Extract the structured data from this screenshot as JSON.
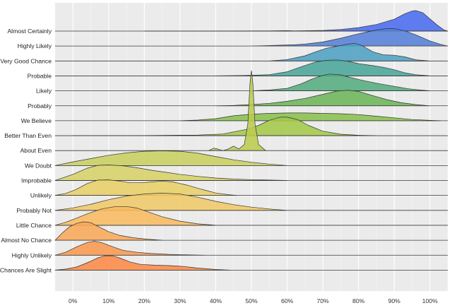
{
  "chart_data": {
    "type": "area",
    "subtype": "ridgeline",
    "title": "",
    "xlabel": "",
    "ylabel": "",
    "xlim": [
      -5,
      105
    ],
    "xticks": [
      0,
      10,
      20,
      30,
      40,
      50,
      60,
      70,
      80,
      90,
      100
    ],
    "xtick_labels": [
      "0%",
      "10%",
      "20%",
      "30%",
      "40%",
      "50%",
      "60%",
      "70%",
      "80%",
      "90%",
      "100%"
    ],
    "grid": true,
    "legend": "none",
    "series": [
      {
        "name": "Almost Certainly",
        "color": "#4a6cf0",
        "points": [
          [
            20,
            0
          ],
          [
            55,
            0.01
          ],
          [
            60,
            0.02
          ],
          [
            62,
            0.01
          ],
          [
            70,
            0.03
          ],
          [
            75,
            0.08
          ],
          [
            80,
            0.17
          ],
          [
            85,
            0.32
          ],
          [
            90,
            0.58
          ],
          [
            93,
            0.85
          ],
          [
            95,
            0.98
          ],
          [
            96,
            1.0
          ],
          [
            98,
            0.9
          ],
          [
            100,
            0.6
          ],
          [
            102,
            0.3
          ],
          [
            104,
            0.05
          ],
          [
            105,
            0
          ]
        ]
      },
      {
        "name": "Highly Likely",
        "color": "#5580d8",
        "points": [
          [
            50,
            0
          ],
          [
            58,
            0.04
          ],
          [
            62,
            0.06
          ],
          [
            65,
            0.1
          ],
          [
            70,
            0.2
          ],
          [
            75,
            0.38
          ],
          [
            80,
            0.6
          ],
          [
            85,
            0.78
          ],
          [
            88,
            0.85
          ],
          [
            90,
            0.85
          ],
          [
            93,
            0.74
          ],
          [
            96,
            0.55
          ],
          [
            100,
            0.25
          ],
          [
            103,
            0.08
          ],
          [
            105,
            0
          ]
        ]
      },
      {
        "name": "Very Good Chance",
        "color": "#4ea0c2",
        "points": [
          [
            55,
            0
          ],
          [
            60,
            0.07
          ],
          [
            65,
            0.25
          ],
          [
            68,
            0.45
          ],
          [
            71,
            0.62
          ],
          [
            74,
            0.72
          ],
          [
            77,
            0.82
          ],
          [
            79,
            0.86
          ],
          [
            81,
            0.75
          ],
          [
            84,
            0.45
          ],
          [
            87,
            0.3
          ],
          [
            90,
            0.28
          ],
          [
            93,
            0.2
          ],
          [
            96,
            0.06
          ],
          [
            100,
            0
          ]
        ]
      },
      {
        "name": "Probable",
        "color": "#4aa59a",
        "points": [
          [
            40,
            0
          ],
          [
            48,
            0.02
          ],
          [
            55,
            0.06
          ],
          [
            60,
            0.2
          ],
          [
            64,
            0.45
          ],
          [
            68,
            0.68
          ],
          [
            71,
            0.76
          ],
          [
            74,
            0.78
          ],
          [
            77,
            0.72
          ],
          [
            80,
            0.6
          ],
          [
            84,
            0.5
          ],
          [
            87,
            0.42
          ],
          [
            90,
            0.3
          ],
          [
            93,
            0.15
          ],
          [
            96,
            0.06
          ],
          [
            100,
            0
          ]
        ]
      },
      {
        "name": "Likely",
        "color": "#54ac80",
        "points": [
          [
            50,
            0
          ],
          [
            55,
            0.04
          ],
          [
            60,
            0.12
          ],
          [
            64,
            0.35
          ],
          [
            67,
            0.58
          ],
          [
            70,
            0.76
          ],
          [
            72,
            0.82
          ],
          [
            75,
            0.78
          ],
          [
            78,
            0.64
          ],
          [
            82,
            0.48
          ],
          [
            86,
            0.34
          ],
          [
            90,
            0.22
          ],
          [
            94,
            0.1
          ],
          [
            98,
            0.03
          ],
          [
            100,
            0
          ]
        ]
      },
      {
        "name": "Probably",
        "color": "#6cb558",
        "points": [
          [
            40,
            0
          ],
          [
            45,
            0.02
          ],
          [
            50,
            0.06
          ],
          [
            55,
            0.12
          ],
          [
            60,
            0.22
          ],
          [
            65,
            0.36
          ],
          [
            70,
            0.56
          ],
          [
            74,
            0.72
          ],
          [
            77,
            0.76
          ],
          [
            80,
            0.7
          ],
          [
            84,
            0.5
          ],
          [
            88,
            0.3
          ],
          [
            92,
            0.15
          ],
          [
            96,
            0.06
          ],
          [
            100,
            0
          ]
        ]
      },
      {
        "name": "We Believe",
        "color": "#8ac04f",
        "points": [
          [
            30,
            0
          ],
          [
            35,
            0.03
          ],
          [
            40,
            0.1
          ],
          [
            45,
            0.24
          ],
          [
            50,
            0.32
          ],
          [
            55,
            0.36
          ],
          [
            60,
            0.38
          ],
          [
            65,
            0.38
          ],
          [
            70,
            0.36
          ],
          [
            75,
            0.34
          ],
          [
            80,
            0.3
          ],
          [
            85,
            0.22
          ],
          [
            90,
            0.14
          ],
          [
            95,
            0.06
          ],
          [
            100,
            0.02
          ],
          [
            103,
            0
          ]
        ]
      },
      {
        "name": "Better Than Even",
        "color": "#a4c84a",
        "points": [
          [
            0,
            0
          ],
          [
            20,
            0.01
          ],
          [
            35,
            0.03
          ],
          [
            42,
            0.08
          ],
          [
            46,
            0.22
          ],
          [
            49,
            0.32
          ],
          [
            52,
            0.5
          ],
          [
            55,
            0.75
          ],
          [
            58,
            0.9
          ],
          [
            60,
            0.9
          ],
          [
            63,
            0.78
          ],
          [
            66,
            0.5
          ],
          [
            70,
            0.22
          ],
          [
            75,
            0.07
          ],
          [
            80,
            0.02
          ],
          [
            85,
            0
          ]
        ]
      },
      {
        "name": "About Even",
        "color": "#bccb50",
        "points": [
          [
            38,
            0
          ],
          [
            39.5,
            0.12
          ],
          [
            40.5,
            0.08
          ],
          [
            42,
            0
          ],
          [
            43.5,
            0.08
          ],
          [
            45,
            0.22
          ],
          [
            46.5,
            0.08
          ],
          [
            48,
            0.3
          ],
          [
            49,
            1.3
          ],
          [
            49.6,
            3.3
          ],
          [
            50,
            3.9
          ],
          [
            50.4,
            3.3
          ],
          [
            51,
            1.3
          ],
          [
            52,
            0.3
          ],
          [
            54,
            0
          ]
        ]
      },
      {
        "name": "We Doubt",
        "color": "#c9cf60",
        "points": [
          [
            -5,
            0
          ],
          [
            0,
            0.18
          ],
          [
            5,
            0.34
          ],
          [
            10,
            0.5
          ],
          [
            15,
            0.62
          ],
          [
            20,
            0.7
          ],
          [
            25,
            0.72
          ],
          [
            30,
            0.7
          ],
          [
            35,
            0.6
          ],
          [
            40,
            0.44
          ],
          [
            45,
            0.28
          ],
          [
            50,
            0.16
          ],
          [
            55,
            0.07
          ],
          [
            60,
            0
          ]
        ]
      },
      {
        "name": "Improbable",
        "color": "#d6d268",
        "points": [
          [
            -5,
            0
          ],
          [
            0,
            0.3
          ],
          [
            4,
            0.6
          ],
          [
            7,
            0.74
          ],
          [
            10,
            0.76
          ],
          [
            14,
            0.72
          ],
          [
            18,
            0.62
          ],
          [
            22,
            0.5
          ],
          [
            26,
            0.4
          ],
          [
            30,
            0.3
          ],
          [
            35,
            0.2
          ],
          [
            40,
            0.12
          ],
          [
            45,
            0.07
          ],
          [
            50,
            0.04
          ],
          [
            55,
            0.02
          ],
          [
            60,
            0
          ]
        ]
      },
      {
        "name": "Unlikely",
        "color": "#e8cf68",
        "points": [
          [
            -5,
            0
          ],
          [
            -2,
            0.1
          ],
          [
            1,
            0.3
          ],
          [
            4,
            0.58
          ],
          [
            7,
            0.75
          ],
          [
            10,
            0.76
          ],
          [
            13,
            0.7
          ],
          [
            16,
            0.62
          ],
          [
            19,
            0.62
          ],
          [
            22,
            0.66
          ],
          [
            25,
            0.7
          ],
          [
            28,
            0.66
          ],
          [
            32,
            0.5
          ],
          [
            36,
            0.3
          ],
          [
            40,
            0.12
          ],
          [
            44,
            0.03
          ],
          [
            46,
            0
          ]
        ]
      },
      {
        "name": "Probably Not",
        "color": "#f0c868",
        "points": [
          [
            -5,
            0
          ],
          [
            0,
            0.12
          ],
          [
            5,
            0.3
          ],
          [
            10,
            0.52
          ],
          [
            15,
            0.7
          ],
          [
            20,
            0.8
          ],
          [
            25,
            0.84
          ],
          [
            30,
            0.8
          ],
          [
            35,
            0.64
          ],
          [
            40,
            0.44
          ],
          [
            45,
            0.28
          ],
          [
            50,
            0.16
          ],
          [
            55,
            0.07
          ],
          [
            60,
            0
          ]
        ]
      },
      {
        "name": "Little Chance",
        "color": "#f8bb60",
        "points": [
          [
            -5,
            0
          ],
          [
            -2,
            0.15
          ],
          [
            1,
            0.35
          ],
          [
            4,
            0.56
          ],
          [
            8,
            0.8
          ],
          [
            12,
            0.92
          ],
          [
            15,
            0.92
          ],
          [
            18,
            0.84
          ],
          [
            21,
            0.66
          ],
          [
            25,
            0.42
          ],
          [
            30,
            0.2
          ],
          [
            35,
            0.07
          ],
          [
            40,
            0
          ]
        ]
      },
      {
        "name": "Almost No Chance",
        "color": "#f9a858",
        "points": [
          [
            -5,
            0
          ],
          [
            -3,
            0.35
          ],
          [
            -1,
            0.65
          ],
          [
            1,
            0.82
          ],
          [
            3,
            0.9
          ],
          [
            5,
            0.86
          ],
          [
            7,
            0.68
          ],
          [
            10,
            0.42
          ],
          [
            13,
            0.24
          ],
          [
            17,
            0.12
          ],
          [
            21,
            0.05
          ],
          [
            25,
            0
          ]
        ]
      },
      {
        "name": "Highly Unlikely",
        "color": "#fa9850",
        "points": [
          [
            -5,
            0
          ],
          [
            -2,
            0.15
          ],
          [
            1,
            0.4
          ],
          [
            4,
            0.62
          ],
          [
            6,
            0.68
          ],
          [
            8,
            0.62
          ],
          [
            11,
            0.42
          ],
          [
            14,
            0.24
          ],
          [
            18,
            0.14
          ],
          [
            22,
            0.08
          ],
          [
            27,
            0.04
          ],
          [
            32,
            0.02
          ],
          [
            37,
            0
          ]
        ]
      },
      {
        "name": "Chances Are Slight",
        "color": "#fc8a48",
        "points": [
          [
            -5,
            0
          ],
          [
            -2,
            0.05
          ],
          [
            1,
            0.15
          ],
          [
            4,
            0.36
          ],
          [
            7,
            0.6
          ],
          [
            9,
            0.7
          ],
          [
            11,
            0.7
          ],
          [
            13,
            0.6
          ],
          [
            16,
            0.4
          ],
          [
            19,
            0.28
          ],
          [
            23,
            0.24
          ],
          [
            27,
            0.22
          ],
          [
            31,
            0.18
          ],
          [
            35,
            0.1
          ],
          [
            40,
            0.03
          ],
          [
            44,
            0
          ]
        ]
      }
    ]
  }
}
